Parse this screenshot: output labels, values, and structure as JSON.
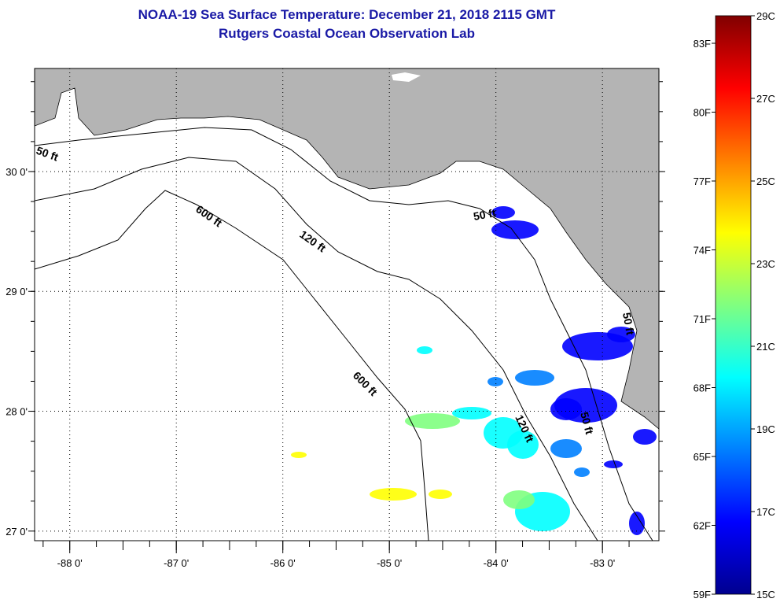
{
  "header": {
    "title": "NOAA-19 Sea Surface Temperature:  December 21, 2018 2115 GMT",
    "subtitle": "Rutgers Coastal Ocean Observation Lab"
  },
  "map": {
    "lon_ticks": [
      -88,
      -87,
      -86,
      -85,
      -84,
      -83
    ],
    "lon_labels": [
      "-88 0'",
      "-87 0'",
      "-86 0'",
      "-85 0'",
      "-84 0'",
      "-83 0'"
    ],
    "lat_ticks": [
      30,
      29,
      28,
      27
    ],
    "lat_labels": [
      "30 0'",
      "29 0'",
      "28 0'",
      "27 0'"
    ],
    "lon_range": [
      -88.33,
      -82.47
    ],
    "lat_range": [
      26.92,
      30.86
    ],
    "land_color": "#b4b4b4",
    "contour_labels": [
      "50 ft",
      "120 ft",
      "600 ft",
      "600 ft",
      "50 ft",
      "120 ft",
      "50 ft",
      "50 ft"
    ]
  },
  "colorbar": {
    "c_range": [
      15,
      29
    ],
    "c_ticks": [
      15,
      17,
      19,
      21,
      23,
      25,
      27,
      29
    ],
    "c_labels": [
      "15C",
      "17C",
      "19C",
      "21C",
      "23C",
      "25C",
      "27C",
      "29C"
    ],
    "f_ticks": [
      59,
      62,
      65,
      68,
      71,
      74,
      77,
      80,
      83
    ],
    "f_labels": [
      "59F",
      "62F",
      "65F",
      "68F",
      "71F",
      "74F",
      "77F",
      "80F",
      "83F"
    ],
    "colors": [
      "#00008f",
      "#0000ff",
      "#0080ff",
      "#00ffff",
      "#80ff80",
      "#ffff00",
      "#ff8000",
      "#ff0000",
      "#800000"
    ]
  }
}
